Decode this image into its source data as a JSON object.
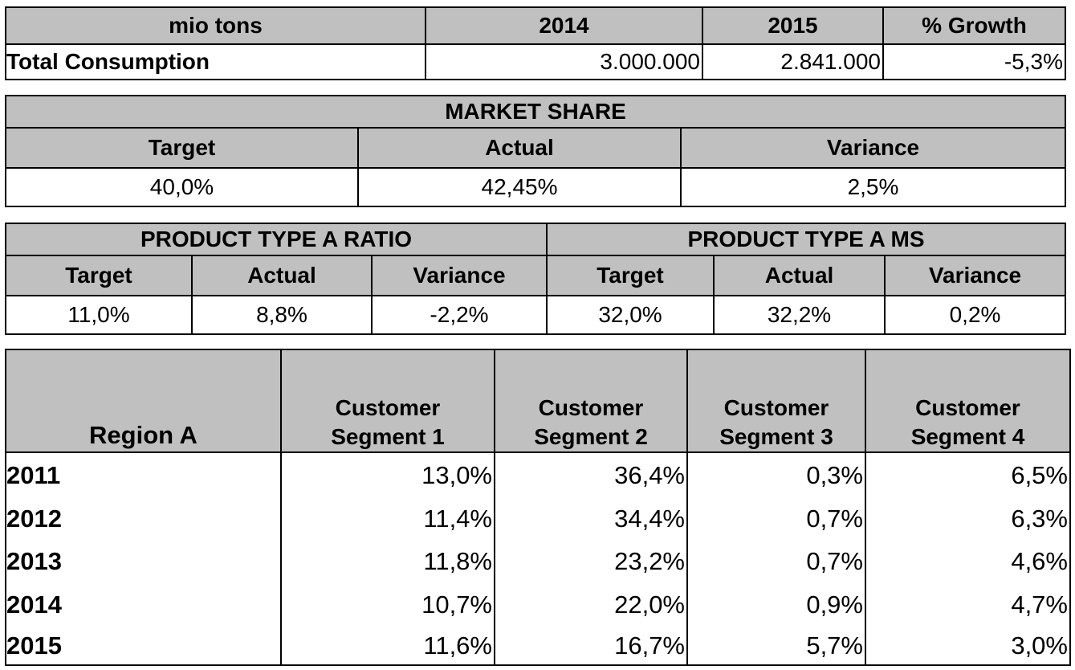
{
  "consumption": {
    "unit_label": "mio tons",
    "col_2014": "2014",
    "col_2015": "2015",
    "col_growth": "% Growth",
    "row_label": "Total Consumption",
    "v2014": "3.000.000",
    "v2015": "2.841.000",
    "growth": "-5,3%"
  },
  "market_share": {
    "title": "MARKET SHARE",
    "target_label": "Target",
    "actual_label": "Actual",
    "variance_label": "Variance",
    "target": "40,0%",
    "actual": "42,45%",
    "variance": "2,5%"
  },
  "product_ratio": {
    "title": "PRODUCT TYPE A RATIO",
    "target_label": "Target",
    "actual_label": "Actual",
    "variance_label": "Variance",
    "target": "11,0%",
    "actual": "8,8%",
    "variance": "-2,2%"
  },
  "product_ms": {
    "title": "PRODUCT TYPE A MS",
    "target_label": "Target",
    "actual_label": "Actual",
    "variance_label": "Variance",
    "target": "32,0%",
    "actual": "32,2%",
    "variance": "0,2%"
  },
  "region": {
    "title": "Region A",
    "segments": [
      {
        "line1": "Customer",
        "line2": "Segment 1"
      },
      {
        "line1": "Customer",
        "line2": "Segment  2"
      },
      {
        "line1": "Customer",
        "line2": "Segment  3"
      },
      {
        "line1": "Customer",
        "line2": "Segment  4"
      }
    ],
    "rows": [
      {
        "year": "2011",
        "values": [
          "13,0%",
          "36,4%",
          "0,3%",
          "6,5%"
        ]
      },
      {
        "year": "2012",
        "values": [
          "11,4%",
          "34,4%",
          "0,7%",
          "6,3%"
        ]
      },
      {
        "year": "2013",
        "values": [
          "11,8%",
          "23,2%",
          "0,7%",
          "4,6%"
        ]
      },
      {
        "year": "2014",
        "values": [
          "10,7%",
          "22,0%",
          "0,9%",
          "4,7%"
        ]
      },
      {
        "year": "2015",
        "values": [
          "11,6%",
          "16,7%",
          "5,7%",
          "3,0%"
        ]
      }
    ]
  }
}
